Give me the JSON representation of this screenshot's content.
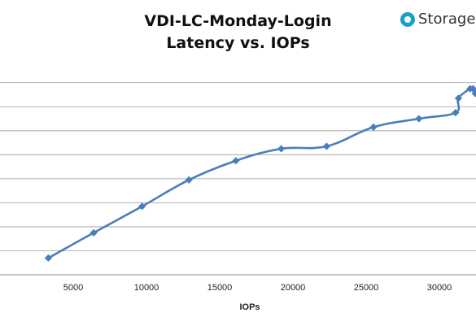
{
  "logo": {
    "text": "Storage",
    "color": "#1a9fc9"
  },
  "chart_data": {
    "type": "line",
    "title": "VDI-LC-Monday-Login",
    "subtitle": "Latency vs. IOPs",
    "xlabel": "IOPs",
    "ylabel": "",
    "xlim": [
      0,
      32500
    ],
    "ylim": [
      0,
      8.6
    ],
    "x_ticks": [
      5000,
      10000,
      15000,
      20000,
      25000,
      30000
    ],
    "x_tick_labels": [
      "5000",
      "10000",
      "15000",
      "20000",
      "25000",
      "30000"
    ],
    "grid": "horizontal",
    "legend": "none",
    "series_color": "#4a7ebb",
    "series": [
      {
        "points": [
          [
            3300,
            0.7
          ],
          [
            6400,
            1.75
          ],
          [
            9700,
            2.85
          ],
          [
            12900,
            3.95
          ],
          [
            16100,
            4.75
          ],
          [
            19200,
            5.25
          ],
          [
            22300,
            5.35
          ],
          [
            25500,
            6.15
          ],
          [
            28600,
            6.5
          ],
          [
            31100,
            6.75
          ],
          [
            31300,
            7.35
          ],
          [
            32100,
            7.75
          ],
          [
            32300,
            7.75
          ],
          [
            32450,
            7.55
          ]
        ]
      }
    ]
  }
}
